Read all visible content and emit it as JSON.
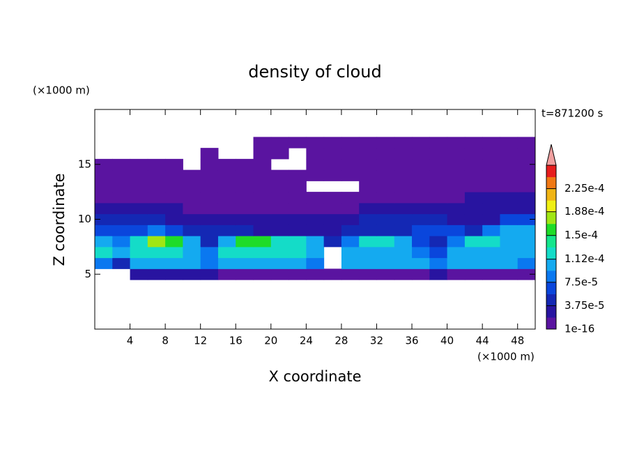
{
  "chart_data": {
    "type": "contour",
    "title": "density of cloud",
    "xlabel": "X coordinate",
    "ylabel": "Z coordinate",
    "xunit": "(×1000 m)",
    "yunit": "(×1000 m)",
    "annotation": "t=871200 s",
    "xlim": [
      0,
      50
    ],
    "ylim": [
      0,
      20
    ],
    "xticks": [
      4,
      8,
      12,
      16,
      20,
      24,
      28,
      32,
      36,
      40,
      44,
      48
    ],
    "yticks": [
      5,
      10,
      15
    ],
    "x": [
      1,
      3,
      5,
      7,
      9,
      11,
      13,
      15,
      17,
      19,
      21,
      23,
      25,
      27,
      29,
      31,
      33,
      35,
      37,
      39,
      41,
      43,
      45,
      47,
      49
    ],
    "y": [
      5,
      6,
      7,
      8,
      9,
      10,
      11,
      12,
      13,
      14,
      15,
      16,
      17
    ],
    "values": [
      [
        null,
        null,
        3e-05,
        3e-05,
        3e-05,
        3e-05,
        3e-05,
        1e-05,
        1e-05,
        1e-05,
        1e-05,
        1e-05,
        1e-05,
        1e-05,
        1e-05,
        1e-05,
        1e-05,
        1e-05,
        1e-05,
        3e-05,
        1e-05,
        1e-05,
        1e-05,
        1e-05,
        1e-05
      ],
      [
        9e-05,
        5e-05,
        0.00011,
        0.00011,
        0.00011,
        0.00011,
        9e-05,
        0.00011,
        0.00011,
        0.00011,
        0.00011,
        0.00011,
        9e-05,
        null,
        0.00011,
        0.00011,
        0.00011,
        0.00011,
        0.00011,
        9e-05,
        0.00011,
        0.00011,
        0.00011,
        0.00011,
        9e-05
      ],
      [
        0.00013,
        0.00011,
        0.00013,
        0.00013,
        0.00013,
        0.00011,
        9e-05,
        0.00013,
        0.00013,
        0.00013,
        0.00013,
        0.00013,
        0.00011,
        null,
        0.00011,
        0.00011,
        0.00011,
        0.00011,
        9e-05,
        7e-05,
        0.00011,
        0.00011,
        0.00011,
        0.00011,
        0.00011
      ],
      [
        0.00011,
        9e-05,
        0.00013,
        0.00017,
        0.00015,
        0.00011,
        5e-05,
        0.00011,
        0.00015,
        0.00015,
        0.00013,
        0.00013,
        0.00011,
        5e-05,
        9e-05,
        0.00013,
        0.00013,
        0.00011,
        7e-05,
        5e-05,
        9e-05,
        0.00013,
        0.00013,
        0.00011,
        0.00011
      ],
      [
        7e-05,
        7e-05,
        7e-05,
        9e-05,
        7e-05,
        5e-05,
        5e-05,
        5e-05,
        5e-05,
        3e-05,
        3e-05,
        3e-05,
        3e-05,
        3e-05,
        5e-05,
        5e-05,
        5e-05,
        5e-05,
        7e-05,
        7e-05,
        7e-05,
        5e-05,
        9e-05,
        0.00011,
        0.00011
      ],
      [
        5e-05,
        5e-05,
        5e-05,
        5e-05,
        3e-05,
        3e-05,
        3e-05,
        3e-05,
        3e-05,
        3e-05,
        3e-05,
        3e-05,
        3e-05,
        3e-05,
        3e-05,
        5e-05,
        5e-05,
        5e-05,
        5e-05,
        5e-05,
        3e-05,
        3e-05,
        3e-05,
        7e-05,
        7e-05
      ],
      [
        3e-05,
        3e-05,
        3e-05,
        3e-05,
        3e-05,
        1e-05,
        1e-05,
        1e-05,
        1e-05,
        1e-05,
        1e-05,
        1e-05,
        1e-05,
        1e-05,
        1e-05,
        3e-05,
        3e-05,
        3e-05,
        3e-05,
        3e-05,
        3e-05,
        3e-05,
        3e-05,
        3e-05,
        3e-05
      ],
      [
        1e-05,
        1e-05,
        1e-05,
        1e-05,
        1e-05,
        1e-05,
        1e-05,
        1e-05,
        1e-05,
        1e-05,
        1e-05,
        1e-05,
        1e-05,
        1e-05,
        1e-05,
        1e-05,
        1e-05,
        1e-05,
        1e-05,
        1e-05,
        1e-05,
        3e-05,
        3e-05,
        3e-05,
        3e-05
      ],
      [
        1e-05,
        1e-05,
        1e-05,
        1e-05,
        1e-05,
        1e-05,
        1e-05,
        1e-05,
        1e-05,
        1e-05,
        1e-05,
        1e-05,
        null,
        null,
        null,
        1e-05,
        1e-05,
        1e-05,
        1e-05,
        1e-05,
        1e-05,
        1e-05,
        1e-05,
        1e-05,
        1e-05
      ],
      [
        1e-05,
        1e-05,
        1e-05,
        1e-05,
        1e-05,
        1e-05,
        1e-05,
        1e-05,
        1e-05,
        1e-05,
        1e-05,
        1e-05,
        1e-05,
        1e-05,
        1e-05,
        1e-05,
        1e-05,
        1e-05,
        1e-05,
        1e-05,
        1e-05,
        1e-05,
        1e-05,
        1e-05,
        1e-05
      ],
      [
        1e-05,
        1e-05,
        1e-05,
        1e-05,
        1e-05,
        null,
        1e-05,
        1e-05,
        1e-05,
        1e-05,
        null,
        null,
        1e-05,
        1e-05,
        1e-05,
        1e-05,
        1e-05,
        1e-05,
        1e-05,
        1e-05,
        1e-05,
        1e-05,
        1e-05,
        1e-05,
        1e-05
      ],
      [
        null,
        null,
        null,
        null,
        null,
        null,
        1e-05,
        null,
        null,
        1e-05,
        1e-05,
        null,
        1e-05,
        1e-05,
        1e-05,
        1e-05,
        1e-05,
        1e-05,
        1e-05,
        1e-05,
        1e-05,
        1e-05,
        1e-05,
        1e-05,
        1e-05
      ],
      [
        null,
        null,
        null,
        null,
        null,
        null,
        null,
        null,
        null,
        1e-05,
        1e-05,
        1e-05,
        1e-05,
        1e-05,
        1e-05,
        1e-05,
        1e-05,
        1e-05,
        1e-05,
        1e-05,
        1e-05,
        1e-05,
        1e-05,
        1e-05,
        1e-05
      ]
    ],
    "colorbar": {
      "levels": [
        1e-16,
        1.875e-05,
        3.75e-05,
        5.625e-05,
        7.5e-05,
        9.375e-05,
        0.0001125,
        0.00013125,
        0.00015,
        0.00016875,
        0.0001875,
        0.00020625,
        0.000225,
        0.00024375,
        0.0002625
      ],
      "colors": [
        "#5a14a0",
        "#2814a0",
        "#1428b4",
        "#0a46dc",
        "#0a78f0",
        "#14aaf0",
        "#14dcc8",
        "#14e68c",
        "#1edc28",
        "#a0e614",
        "#f0f014",
        "#f0b414",
        "#f07814",
        "#e61e1e"
      ],
      "extend_color": "#f0a0a0",
      "ticks": [
        {
          "value": 1e-16,
          "label": "1e-16"
        },
        {
          "value": 3.75e-05,
          "label": "3.75e-5"
        },
        {
          "value": 7.5e-05,
          "label": "7.5e-5"
        },
        {
          "value": 0.000112,
          "label": "1.12e-4"
        },
        {
          "value": 0.00015,
          "label": "1.5e-4"
        },
        {
          "value": 0.000188,
          "label": "1.88e-4"
        },
        {
          "value": 0.000225,
          "label": "2.25e-4"
        }
      ]
    }
  }
}
